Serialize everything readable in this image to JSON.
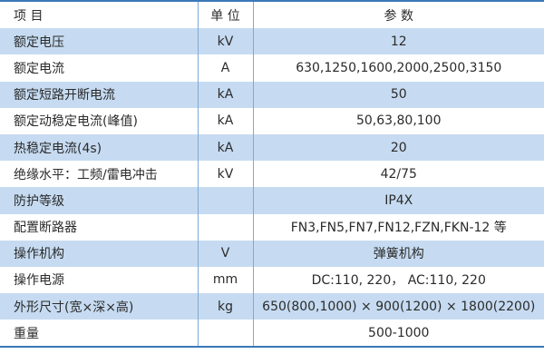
{
  "header": {
    "item": "项  目",
    "unit": "单 位",
    "param": "参  数"
  },
  "rows": [
    {
      "item": "额定电压",
      "unit": "kV",
      "param": "12"
    },
    {
      "item": "额定电流",
      "unit": "A",
      "param": "630,1250,1600,2000,2500,3150"
    },
    {
      "item": "额定短路开断电流",
      "unit": "kA",
      "param": "50"
    },
    {
      "item": "额定动稳定电流(峰值)",
      "unit": "kA",
      "param": "50,63,80,100"
    },
    {
      "item": "热稳定电流(4s)",
      "unit": "kA",
      "param": "20"
    },
    {
      "item": "绝缘水平：工频/雷电冲击",
      "unit": "kV",
      "param": "42/75"
    },
    {
      "item": "防护等级",
      "unit": "",
      "param": "IP4X"
    },
    {
      "item": "配置断路器",
      "unit": "",
      "param": "FN3,FN5,FN7,FN12,FZN,FKN-12 等"
    },
    {
      "item": "操作机构",
      "unit": "V",
      "param": "弹簧机构"
    },
    {
      "item": "操作电源",
      "unit": "mm",
      "param": "DC:110, 220，  AC:110, 220"
    },
    {
      "item": "外形尺寸(宽×深×高)",
      "unit": "kg",
      "param": "650(800,1000) × 900(1200) × 1800(2200)"
    },
    {
      "item": "重量",
      "unit": "",
      "param": "500-1000"
    }
  ],
  "colors": {
    "accent": "#3a78b8",
    "row_alt": "#c6dbf1"
  }
}
